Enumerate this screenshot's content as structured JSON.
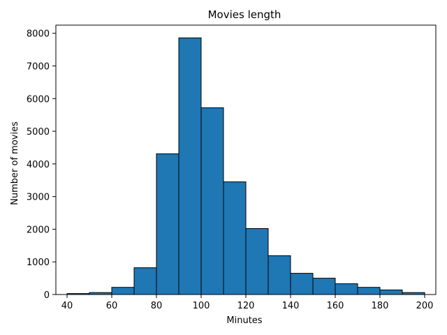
{
  "chart_data": {
    "type": "bar",
    "title": "Movies length",
    "xlabel": "Minutes",
    "ylabel": "Number of movies",
    "xlim": [
      35,
      205
    ],
    "ylim": [
      0,
      8250
    ],
    "bin_edges": [
      40,
      50,
      60,
      70,
      80,
      90,
      100,
      110,
      120,
      130,
      140,
      150,
      160,
      170,
      180,
      190,
      200
    ],
    "values": [
      30,
      60,
      220,
      820,
      4310,
      7860,
      5720,
      3450,
      2020,
      1190,
      650,
      500,
      330,
      220,
      140,
      60
    ],
    "xticks": [
      40,
      60,
      80,
      100,
      120,
      140,
      160,
      180,
      200
    ],
    "yticks": [
      0,
      1000,
      2000,
      3000,
      4000,
      5000,
      6000,
      7000,
      8000
    ],
    "grid": false,
    "bar_color": "#1f77b4",
    "edge_color": "#000000"
  }
}
